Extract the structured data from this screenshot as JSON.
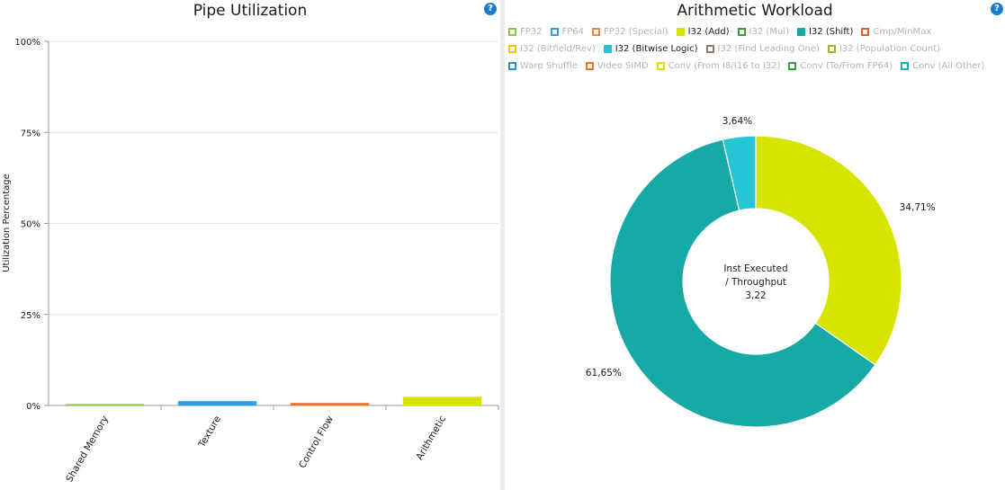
{
  "left": {
    "title": "Pipe Utilization",
    "help": "?"
  },
  "right": {
    "title": "Arithmetic Workload",
    "help": "?",
    "center_line1": "Inst Executed",
    "center_line2": "/ Throughput",
    "center_value": "3,22"
  },
  "legend": [
    [
      {
        "label": "FP32",
        "color": "#8dc63f",
        "on": false
      },
      {
        "label": "FP64",
        "color": "#29a2e0",
        "on": false
      },
      {
        "label": "FP32 (Special)",
        "color": "#f08840",
        "on": false
      },
      {
        "label": "I32 (Add)",
        "color": "#d6e400",
        "on": true
      },
      {
        "label": "I32 (Mul)",
        "color": "#3b9e3b",
        "on": false
      },
      {
        "label": "I32 (Shift)",
        "color": "#17a9a5",
        "on": true
      },
      {
        "label": "Cmp/MinMax",
        "color": "#e0602a",
        "on": false
      }
    ],
    [
      {
        "label": "I32 (Bitfield/Rev)",
        "color": "#f2c418",
        "on": false
      },
      {
        "label": "I32 (Bitwise Logic)",
        "color": "#26c6d6",
        "on": true
      },
      {
        "label": "I32 (Find Leading One)",
        "color": "#8a7e6a",
        "on": false
      },
      {
        "label": "I32 (Population Count)",
        "color": "#9bb82c",
        "on": false
      }
    ],
    [
      {
        "label": "Warp Shuffle",
        "color": "#2b8fd6",
        "on": false
      },
      {
        "label": "Video SIMD",
        "color": "#e8742a",
        "on": false
      },
      {
        "label": "Conv (From I8/I16 to I32)",
        "color": "#d6e400",
        "on": false
      },
      {
        "label": "Conv (To/From FP64)",
        "color": "#3b9e3b",
        "on": false
      },
      {
        "label": "Conv (All Other)",
        "color": "#17b3b0",
        "on": false
      }
    ]
  ],
  "chart_data": [
    {
      "type": "bar",
      "title": "Pipe Utilization",
      "ylabel": "Utilization Percentage",
      "xlabel": "",
      "ylim": [
        0,
        100
      ],
      "yticks": [
        "0%",
        "25%",
        "50%",
        "75%",
        "100%"
      ],
      "grid": true,
      "categories": [
        "Shared Memory",
        "Texture",
        "Control Flow",
        "Arithmetic"
      ],
      "values": [
        0.4,
        1.2,
        0.7,
        2.4
      ],
      "colors": [
        "#8dc63f",
        "#29a2e0",
        "#e8742a",
        "#d6e400"
      ]
    },
    {
      "type": "pie",
      "title": "Arithmetic Workload",
      "labels": [
        "I32 (Add)",
        "I32 (Shift)",
        "I32 (Bitwise Logic)"
      ],
      "values": [
        34.71,
        61.65,
        3.64
      ],
      "value_labels": [
        "34,71%",
        "61,65%",
        "3,64%"
      ],
      "colors": [
        "#d6e400",
        "#17a9a5",
        "#26c6d6"
      ],
      "donut": true
    }
  ]
}
